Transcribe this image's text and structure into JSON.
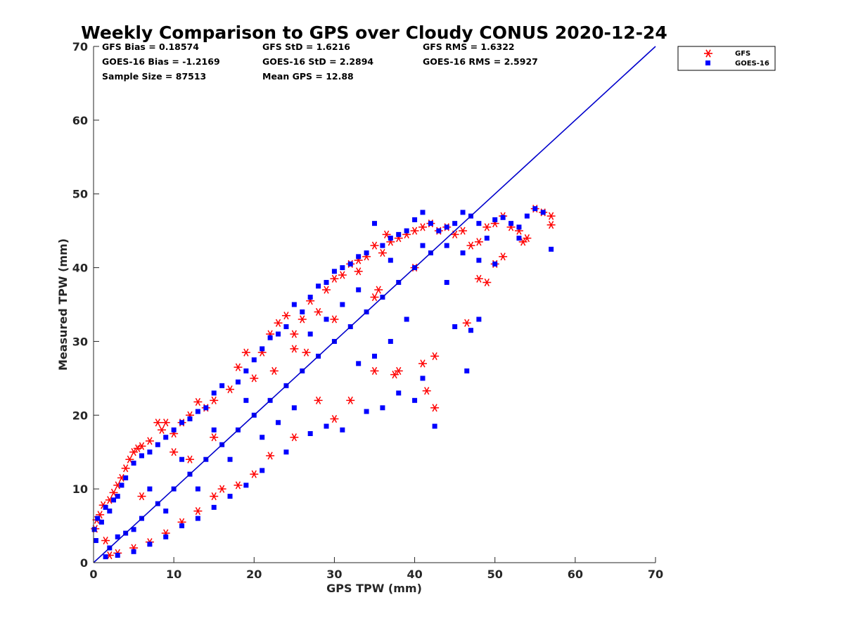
{
  "chart_data": {
    "type": "scatter",
    "title": "Weekly Comparison to GPS over Cloudy CONUS 2020-12-24",
    "xlabel": "GPS TPW (mm)",
    "ylabel": "Measured TPW (mm)",
    "xlim": [
      0,
      70
    ],
    "ylim": [
      0,
      70
    ],
    "xticks": [
      0,
      10,
      20,
      30,
      40,
      50,
      60,
      70
    ],
    "yticks": [
      0,
      10,
      20,
      30,
      40,
      50,
      60,
      70
    ],
    "legend_position": "outside-top-right",
    "stats": [
      [
        "GFS Bias = 0.18574",
        "GFS StD = 1.6216",
        "GFS RMS = 1.6322"
      ],
      [
        "GOES-16 Bias = -1.2169",
        "GOES-16 StD = 2.2894",
        "GOES-16 RMS = 2.5927"
      ],
      [
        "Sample Size = 87513",
        "Mean GPS = 12.88",
        ""
      ]
    ],
    "reference_line": {
      "from": [
        0,
        0
      ],
      "to": [
        70,
        70
      ],
      "color": "#0000cc"
    },
    "series": [
      {
        "name": "GFS",
        "marker": "asterisk",
        "color": "#ff0000",
        "points": [
          [
            0.2,
            4.6
          ],
          [
            0.4,
            5.8
          ],
          [
            0.8,
            6.5
          ],
          [
            1.2,
            7.8
          ],
          [
            1.5,
            3.0
          ],
          [
            2.0,
            8.5
          ],
          [
            2.5,
            9.5
          ],
          [
            3.0,
            10.5
          ],
          [
            3.5,
            11.5
          ],
          [
            4.0,
            12.8
          ],
          [
            4.5,
            14.0
          ],
          [
            5.0,
            15.0
          ],
          [
            5.5,
            15.5
          ],
          [
            6.0,
            15.8
          ],
          [
            7.0,
            16.5
          ],
          [
            8.0,
            19.0
          ],
          [
            8.5,
            18.0
          ],
          [
            9.0,
            19.0
          ],
          [
            10.0,
            17.5
          ],
          [
            11.0,
            19.0
          ],
          [
            12.0,
            20.0
          ],
          [
            13.0,
            21.8
          ],
          [
            14.0,
            21.0
          ],
          [
            15.0,
            22.0
          ],
          [
            17.0,
            23.5
          ],
          [
            18.0,
            26.5
          ],
          [
            19.0,
            28.5
          ],
          [
            21.0,
            28.5
          ],
          [
            22.0,
            31.0
          ],
          [
            23.0,
            32.5
          ],
          [
            24.0,
            33.5
          ],
          [
            25.0,
            31.0
          ],
          [
            26.0,
            33.0
          ],
          [
            27.0,
            35.5
          ],
          [
            28.0,
            34.0
          ],
          [
            29.0,
            37.0
          ],
          [
            30.0,
            38.5
          ],
          [
            31.0,
            39.0
          ],
          [
            32.0,
            40.5
          ],
          [
            33.0,
            41.0
          ],
          [
            34.0,
            41.5
          ],
          [
            35.0,
            43.0
          ],
          [
            36.0,
            42.0
          ],
          [
            37.0,
            43.5
          ],
          [
            38.0,
            44.0
          ],
          [
            39.0,
            44.5
          ],
          [
            40.0,
            45.0
          ],
          [
            41.0,
            45.5
          ],
          [
            42.0,
            46.0
          ],
          [
            43.0,
            45.0
          ],
          [
            44.0,
            45.5
          ],
          [
            45.0,
            44.5
          ],
          [
            46.0,
            45.0
          ],
          [
            47.0,
            43.0
          ],
          [
            48.0,
            43.5
          ],
          [
            49.0,
            45.5
          ],
          [
            50.0,
            46.0
          ],
          [
            51.0,
            47.0
          ],
          [
            52.0,
            45.5
          ],
          [
            53.0,
            45.0
          ],
          [
            53.5,
            43.5
          ],
          [
            54.0,
            44.0
          ],
          [
            55.0,
            48.0
          ],
          [
            56.0,
            47.5
          ],
          [
            57.0,
            47.0
          ],
          [
            57.0,
            45.8
          ],
          [
            51.0,
            41.5
          ],
          [
            50.0,
            40.5
          ],
          [
            49.0,
            38.0
          ],
          [
            48.0,
            38.5
          ],
          [
            46.5,
            32.5
          ],
          [
            42.5,
            21.0
          ],
          [
            41.5,
            23.3
          ],
          [
            41.0,
            27.0
          ],
          [
            42.5,
            28.0
          ],
          [
            38.0,
            26.0
          ],
          [
            37.5,
            25.5
          ],
          [
            35.0,
            26.0
          ],
          [
            32.0,
            22.0
          ],
          [
            30.0,
            19.5
          ],
          [
            28.0,
            22.0
          ],
          [
            25.0,
            17.0
          ],
          [
            22.0,
            14.5
          ],
          [
            20.0,
            12.0
          ],
          [
            18.0,
            10.5
          ],
          [
            16.0,
            10.0
          ],
          [
            15.0,
            9.0
          ],
          [
            13.0,
            7.0
          ],
          [
            11.0,
            5.5
          ],
          [
            9.0,
            4.0
          ],
          [
            7.0,
            2.8
          ],
          [
            5.0,
            2.0
          ],
          [
            3.0,
            1.3
          ],
          [
            2.0,
            1.0
          ],
          [
            10.0,
            15.0
          ],
          [
            20.0,
            25.0
          ],
          [
            25.0,
            29.0
          ],
          [
            30.0,
            33.0
          ],
          [
            35.0,
            36.0
          ],
          [
            40.0,
            40.0
          ],
          [
            6.0,
            9.0
          ],
          [
            12.0,
            14.0
          ],
          [
            15.0,
            17.0
          ],
          [
            33.0,
            39.5
          ],
          [
            36.5,
            44.5
          ],
          [
            35.5,
            37.0
          ],
          [
            22.5,
            26.0
          ],
          [
            26.5,
            28.5
          ]
        ]
      },
      {
        "name": "GOES-16",
        "marker": "square",
        "color": "#0000ff",
        "points": [
          [
            0.1,
            4.5
          ],
          [
            0.3,
            3.0
          ],
          [
            0.5,
            6.0
          ],
          [
            1.0,
            5.5
          ],
          [
            1.5,
            7.5
          ],
          [
            2.0,
            7.0
          ],
          [
            2.5,
            8.5
          ],
          [
            3.0,
            9.0
          ],
          [
            3.5,
            10.5
          ],
          [
            4.0,
            11.5
          ],
          [
            5.0,
            13.5
          ],
          [
            6.0,
            14.5
          ],
          [
            7.0,
            15.0
          ],
          [
            8.0,
            16.0
          ],
          [
            9.0,
            17.0
          ],
          [
            10.0,
            18.0
          ],
          [
            11.0,
            19.0
          ],
          [
            12.0,
            19.5
          ],
          [
            13.0,
            20.5
          ],
          [
            14.0,
            21.0
          ],
          [
            15.0,
            23.0
          ],
          [
            16.0,
            24.0
          ],
          [
            18.0,
            24.5
          ],
          [
            19.0,
            26.0
          ],
          [
            20.0,
            27.5
          ],
          [
            21.0,
            29.0
          ],
          [
            22.0,
            30.5
          ],
          [
            23.0,
            31.0
          ],
          [
            24.0,
            32.0
          ],
          [
            25.0,
            35.0
          ],
          [
            26.0,
            34.0
          ],
          [
            27.0,
            36.0
          ],
          [
            28.0,
            37.5
          ],
          [
            29.0,
            38.0
          ],
          [
            30.0,
            39.5
          ],
          [
            31.0,
            40.0
          ],
          [
            32.0,
            40.5
          ],
          [
            33.0,
            41.5
          ],
          [
            34.0,
            42.0
          ],
          [
            35.0,
            46.0
          ],
          [
            36.0,
            43.0
          ],
          [
            37.0,
            44.0
          ],
          [
            38.0,
            44.5
          ],
          [
            39.0,
            45.0
          ],
          [
            40.0,
            46.5
          ],
          [
            41.0,
            47.5
          ],
          [
            42.0,
            46.0
          ],
          [
            43.0,
            45.0
          ],
          [
            44.0,
            45.5
          ],
          [
            45.0,
            46.0
          ],
          [
            46.0,
            47.5
          ],
          [
            47.0,
            47.0
          ],
          [
            48.0,
            46.0
          ],
          [
            49.0,
            44.0
          ],
          [
            50.0,
            46.5
          ],
          [
            51.0,
            46.8
          ],
          [
            52.0,
            46.0
          ],
          [
            53.0,
            45.5
          ],
          [
            54.0,
            47.0
          ],
          [
            55.0,
            48.0
          ],
          [
            56.0,
            47.5
          ],
          [
            57.0,
            42.5
          ],
          [
            53.0,
            44.0
          ],
          [
            50.0,
            40.5
          ],
          [
            48.0,
            33.0
          ],
          [
            46.5,
            26.0
          ],
          [
            42.5,
            18.5
          ],
          [
            41.0,
            25.0
          ],
          [
            40.0,
            22.0
          ],
          [
            38.0,
            23.0
          ],
          [
            36.0,
            21.0
          ],
          [
            34.0,
            20.5
          ],
          [
            31.0,
            18.0
          ],
          [
            29.0,
            18.5
          ],
          [
            27.0,
            17.5
          ],
          [
            24.0,
            15.0
          ],
          [
            21.0,
            12.5
          ],
          [
            19.0,
            10.5
          ],
          [
            17.0,
            9.0
          ],
          [
            15.0,
            7.5
          ],
          [
            13.0,
            6.0
          ],
          [
            11.0,
            5.0
          ],
          [
            9.0,
            3.5
          ],
          [
            7.0,
            2.5
          ],
          [
            5.0,
            1.5
          ],
          [
            3.0,
            1.0
          ],
          [
            1.5,
            0.8
          ],
          [
            2.0,
            2.0
          ],
          [
            4.0,
            4.0
          ],
          [
            6.0,
            6.0
          ],
          [
            8.0,
            8.0
          ],
          [
            10.0,
            10.0
          ],
          [
            12.0,
            12.0
          ],
          [
            14.0,
            14.0
          ],
          [
            16.0,
            16.0
          ],
          [
            18.0,
            18.0
          ],
          [
            20.0,
            20.0
          ],
          [
            22.0,
            22.0
          ],
          [
            24.0,
            24.0
          ],
          [
            26.0,
            26.0
          ],
          [
            28.0,
            28.0
          ],
          [
            30.0,
            30.0
          ],
          [
            32.0,
            32.0
          ],
          [
            34.0,
            34.0
          ],
          [
            36.0,
            36.0
          ],
          [
            38.0,
            38.0
          ],
          [
            40.0,
            40.0
          ],
          [
            42.0,
            42.0
          ],
          [
            44.0,
            43.0
          ],
          [
            46.0,
            42.0
          ],
          [
            48.0,
            41.0
          ],
          [
            44.0,
            38.0
          ],
          [
            45.0,
            32.0
          ],
          [
            47.0,
            31.5
          ],
          [
            39.0,
            33.0
          ],
          [
            37.0,
            30.0
          ],
          [
            35.0,
            28.0
          ],
          [
            33.0,
            27.0
          ],
          [
            25.0,
            21.0
          ],
          [
            23.0,
            19.0
          ],
          [
            21.0,
            17.0
          ],
          [
            17.0,
            14.0
          ],
          [
            13.0,
            10.0
          ],
          [
            9.0,
            7.0
          ],
          [
            5.0,
            4.5
          ],
          [
            3.0,
            3.5
          ],
          [
            19.0,
            22.0
          ],
          [
            27.0,
            31.0
          ],
          [
            33.0,
            37.0
          ],
          [
            37.0,
            41.0
          ],
          [
            41.0,
            43.0
          ],
          [
            15.0,
            18.0
          ],
          [
            11.0,
            14.0
          ],
          [
            7.0,
            10.0
          ],
          [
            29.0,
            33.0
          ],
          [
            31.0,
            35.0
          ]
        ]
      }
    ]
  }
}
